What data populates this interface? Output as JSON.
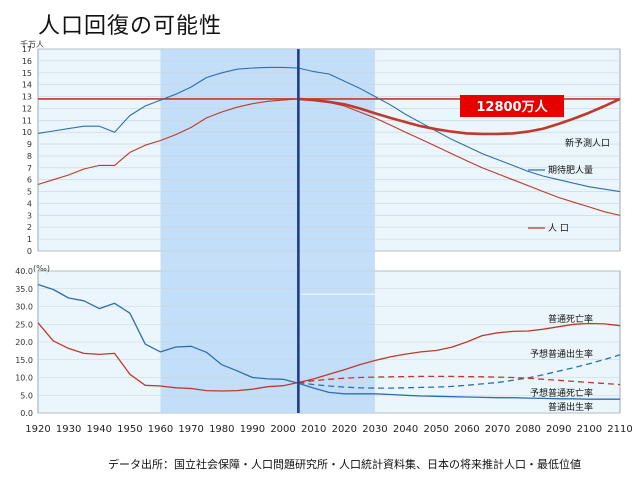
{
  "page": {
    "title": "人口回復の可能性",
    "source_note": "データ出所：国立社会保障・人口問題研究所・人口統計資料集、日本の将来推計人口・最低位値"
  },
  "colors": {
    "panel_bg": "#eaf6fb",
    "highlight_band": "#bfdcf8",
    "vertical_line": "#1f3d8a",
    "line_red": "#c0392b",
    "line_blue": "#2f6fae",
    "forecast_red": "#c0392b",
    "label_box": "#e60000"
  },
  "chart_data": [
    {
      "type": "line",
      "ylabel": "千万人",
      "ylim": [
        0,
        17
      ],
      "yticks": [
        0,
        1,
        2,
        3,
        4,
        5,
        6,
        7,
        8,
        9,
        10,
        11,
        12,
        13,
        14,
        15,
        16,
        17
      ],
      "xlim": [
        1920,
        2110
      ],
      "highlight_x": [
        1960,
        2030
      ],
      "vertical_line_x": 2005,
      "reference_line": {
        "y": 12.8,
        "label": "12800万人"
      },
      "series": [
        {
          "name": "期待肥人量",
          "color": "#2f6fae",
          "x": [
            1920,
            1925,
            1930,
            1935,
            1940,
            1945,
            1950,
            1955,
            1960,
            1965,
            1970,
            1975,
            1980,
            1985,
            1990,
            1995,
            2000,
            2005,
            2010,
            2015,
            2020,
            2025,
            2030,
            2035,
            2040,
            2045,
            2050,
            2055,
            2060,
            2065,
            2070,
            2075,
            2080,
            2085,
            2090,
            2095,
            2100,
            2105,
            2110
          ],
          "values": [
            9.9,
            10.1,
            10.3,
            10.5,
            10.5,
            10.0,
            11.4,
            12.2,
            12.7,
            13.2,
            13.8,
            14.6,
            15.0,
            15.3,
            15.4,
            15.45,
            15.45,
            15.4,
            15.1,
            14.9,
            14.3,
            13.7,
            13.0,
            12.3,
            11.5,
            10.8,
            10.1,
            9.4,
            8.8,
            8.2,
            7.7,
            7.2,
            6.7,
            6.3,
            6.0,
            5.7,
            5.4,
            5.2,
            5.0
          ]
        },
        {
          "name": "人 口",
          "color": "#c0392b",
          "x": [
            1920,
            1925,
            1930,
            1935,
            1940,
            1945,
            1950,
            1955,
            1960,
            1965,
            1970,
            1975,
            1980,
            1985,
            1990,
            1995,
            2000,
            2005,
            2010,
            2015,
            2020,
            2025,
            2030,
            2035,
            2040,
            2045,
            2050,
            2055,
            2060,
            2065,
            2070,
            2075,
            2080,
            2085,
            2090,
            2095,
            2100,
            2105,
            2110
          ],
          "values": [
            5.6,
            6.0,
            6.4,
            6.9,
            7.2,
            7.2,
            8.3,
            8.9,
            9.3,
            9.8,
            10.4,
            11.2,
            11.7,
            12.1,
            12.4,
            12.6,
            12.7,
            12.8,
            12.7,
            12.5,
            12.2,
            11.7,
            11.2,
            10.6,
            10.0,
            9.4,
            8.8,
            8.2,
            7.6,
            7.0,
            6.5,
            6.0,
            5.5,
            5.0,
            4.5,
            4.1,
            3.7,
            3.3,
            3.0
          ]
        },
        {
          "name": "新予測人口",
          "color": "#c0392b",
          "x": [
            2005,
            2010,
            2015,
            2020,
            2025,
            2030,
            2035,
            2040,
            2045,
            2050,
            2055,
            2060,
            2065,
            2070,
            2075,
            2080,
            2085,
            2090,
            2095,
            2100,
            2105,
            2110
          ],
          "values": [
            12.8,
            12.7,
            12.55,
            12.35,
            12.0,
            11.6,
            11.2,
            10.85,
            10.5,
            10.25,
            10.05,
            9.9,
            9.85,
            9.85,
            9.9,
            10.05,
            10.3,
            10.7,
            11.15,
            11.65,
            12.2,
            12.8
          ]
        }
      ]
    },
    {
      "type": "line",
      "ylabel": "(‰)",
      "ylim": [
        0,
        40
      ],
      "yticks": [
        0.0,
        5.0,
        10.0,
        15.0,
        20.0,
        25.0,
        30.0,
        35.0,
        40.0
      ],
      "xlim": [
        1920,
        2110
      ],
      "xticks": [
        1920,
        1930,
        1940,
        1950,
        1960,
        1970,
        1980,
        1990,
        2000,
        2010,
        2020,
        2030,
        2040,
        2050,
        2060,
        2070,
        2080,
        2090,
        2100,
        2110
      ],
      "highlight_x": [
        1960,
        2030
      ],
      "vertical_line_x": 2005,
      "series": [
        {
          "name": "普通出生率",
          "color": "#2f6fae",
          "dash": false,
          "x": [
            1920,
            1925,
            1930,
            1935,
            1940,
            1945,
            1950,
            1955,
            1960,
            1965,
            1970,
            1975,
            1980,
            1985,
            1990,
            1995,
            2000,
            2005,
            2010,
            2015,
            2020,
            2025,
            2030,
            2035,
            2040,
            2045,
            2050,
            2055,
            2060,
            2065,
            2070,
            2075,
            2080,
            2085,
            2090,
            2095,
            2100,
            2105,
            2110
          ],
          "values": [
            36.2,
            34.8,
            32.4,
            31.6,
            29.4,
            30.9,
            28.1,
            19.4,
            17.2,
            18.6,
            18.8,
            17.1,
            13.6,
            11.9,
            10.0,
            9.6,
            9.5,
            8.4,
            7.0,
            5.8,
            5.4,
            5.4,
            5.4,
            5.2,
            5.0,
            4.8,
            4.7,
            4.6,
            4.5,
            4.4,
            4.3,
            4.3,
            4.2,
            4.1,
            4.0,
            4.0,
            3.9,
            3.9,
            3.9
          ]
        },
        {
          "name": "普通死亡率",
          "color": "#c0392b",
          "dash": false,
          "x": [
            1920,
            1925,
            1930,
            1935,
            1940,
            1945,
            1950,
            1955,
            1960,
            1965,
            1970,
            1975,
            1980,
            1985,
            1990,
            1995,
            2000,
            2005,
            2010,
            2015,
            2020,
            2025,
            2030,
            2035,
            2040,
            2045,
            2050,
            2055,
            2060,
            2065,
            2070,
            2075,
            2080,
            2085,
            2090,
            2095,
            2100,
            2105,
            2110
          ],
          "values": [
            25.4,
            20.3,
            18.2,
            16.8,
            16.5,
            16.8,
            10.9,
            7.8,
            7.6,
            7.1,
            6.9,
            6.3,
            6.2,
            6.3,
            6.7,
            7.4,
            7.7,
            8.6,
            9.6,
            10.9,
            12.2,
            13.6,
            14.8,
            15.8,
            16.6,
            17.2,
            17.6,
            18.5,
            20.0,
            21.8,
            22.6,
            23.0,
            23.1,
            23.6,
            24.3,
            25.0,
            25.2,
            25.1,
            24.6
          ]
        },
        {
          "name": "予想普通出生率",
          "color": "#2f6fae",
          "dash": true,
          "x": [
            2005,
            2010,
            2015,
            2020,
            2025,
            2030,
            2035,
            2040,
            2045,
            2050,
            2055,
            2060,
            2065,
            2070,
            2075,
            2080,
            2085,
            2090,
            2095,
            2100,
            2105,
            2110
          ],
          "values": [
            8.6,
            8.0,
            7.6,
            7.3,
            7.1,
            7.0,
            7.0,
            7.1,
            7.2,
            7.3,
            7.5,
            7.8,
            8.2,
            8.6,
            9.2,
            9.9,
            10.8,
            11.8,
            12.8,
            13.9,
            15.1,
            16.4
          ]
        },
        {
          "name": "予想普通死亡率",
          "color": "#c0392b",
          "dash": true,
          "x": [
            2005,
            2010,
            2015,
            2020,
            2025,
            2030,
            2035,
            2040,
            2045,
            2050,
            2055,
            2060,
            2065,
            2070,
            2075,
            2080,
            2085,
            2090,
            2095,
            2100,
            2105,
            2110
          ],
          "values": [
            8.6,
            9.1,
            9.5,
            9.8,
            10.0,
            10.1,
            10.2,
            10.25,
            10.3,
            10.3,
            10.3,
            10.25,
            10.2,
            10.1,
            10.0,
            9.8,
            9.5,
            9.2,
            8.9,
            8.6,
            8.3,
            8.0
          ]
        }
      ]
    }
  ]
}
